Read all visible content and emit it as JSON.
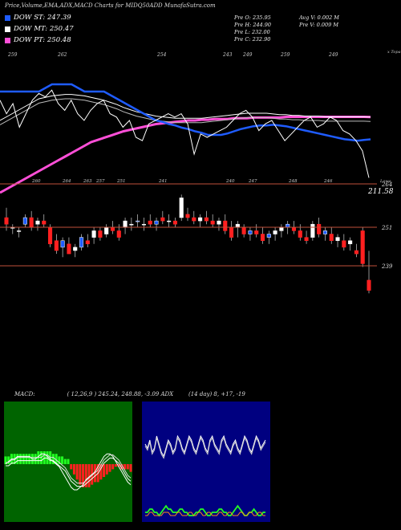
{
  "header": {
    "title": "Price,Volume,EMA,ADX,MACD Charts for MIDQ50ADD MunafaSutra.com"
  },
  "legend": [
    {
      "label": "DOW ST: 247.39",
      "color": "#1f5cff"
    },
    {
      "label": "DOW MT: 250.47",
      "color": "#ffffff"
    },
    {
      "label": "DOW PT: 250.48",
      "color": "#ff4fd8"
    }
  ],
  "ohlc": {
    "open": "Pre  O: 235.95",
    "high": "Pre  H: 244.90",
    "low": "Pre  L: 232.00",
    "close": "Pre  C: 232.90",
    "avg_vol": "Avg V: 0.002  M",
    "pre_vol": "Pre  V: 0.009 M"
  },
  "top_panel": {
    "date_labels": [
      "259",
      "262",
      "254",
      "243",
      "249",
      "259",
      "249"
    ],
    "right_label": "x Topa",
    "scale_label": "Lowa"
  },
  "candle_panel": {
    "top_labels": [
      "260",
      "264",
      "263",
      "257",
      "251",
      "241",
      "240",
      "247",
      "248",
      "246"
    ],
    "price_labels": [
      "264",
      "211.58",
      "251",
      "239"
    ]
  },
  "macd": {
    "label": "MACD:",
    "values": "( 12,26,9 ) 245.24,  248.88, -3.09 ADX"
  },
  "adx": {
    "label": "(14  day) 8,  +17,  -19"
  },
  "chart_data": {
    "type": "candlestick",
    "price_series": {
      "close": [
        256,
        252,
        255,
        248,
        252,
        256,
        258,
        257,
        259,
        255,
        253,
        256,
        252,
        250,
        253,
        255,
        256,
        252,
        251,
        248,
        250,
        245,
        244,
        249,
        250,
        251,
        252,
        251,
        252,
        249,
        240,
        246,
        245,
        246,
        247,
        248,
        250,
        252,
        253,
        251,
        247,
        249,
        250,
        247,
        244,
        246,
        248,
        250,
        251,
        248,
        249,
        251,
        250,
        247,
        246,
        244,
        241,
        233
      ]
    },
    "ema_lines": {
      "ST": [
        254,
        254,
        254,
        254,
        254,
        254,
        254,
        254.5,
        255,
        255,
        255,
        255,
        254.5,
        254,
        254,
        254,
        254,
        253.5,
        253,
        252.5,
        252,
        251.5,
        251,
        250.5,
        250,
        249.8,
        249.5,
        249.3,
        249,
        248.8,
        248.5,
        248.3,
        248,
        248,
        248,
        248.2,
        248.5,
        248.8,
        249,
        249.2,
        249.3,
        249.3,
        249.4,
        249.3,
        249.2,
        249,
        248.8,
        248.6,
        248.4,
        248.2,
        248,
        247.8,
        247.6,
        247.4,
        247.3,
        247.2,
        247.3,
        247.39
      ],
      "MT": [
        250,
        250.5,
        251,
        251.5,
        252,
        252.5,
        253,
        253.2,
        253.4,
        253.5,
        253.6,
        253.6,
        253.5,
        253.4,
        253.2,
        253,
        252.8,
        252.5,
        252.2,
        251.8,
        251.5,
        251.2,
        251,
        250.8,
        250.6,
        250.5,
        250.4,
        250.3,
        250.3,
        250.3,
        250.3,
        250.3,
        250.4,
        250.5,
        250.6,
        250.7,
        250.8,
        250.9,
        251,
        251,
        251,
        251,
        250.9,
        250.8,
        250.8,
        250.7,
        250.7,
        250.6,
        250.6,
        250.6,
        250.5,
        250.5,
        250.5,
        250.5,
        250.5,
        250.5,
        250.5,
        250.47
      ],
      "PT": [
        240,
        240.5,
        241,
        241.5,
        242,
        242.5,
        243,
        243.5,
        244,
        244.5,
        245,
        245.5,
        246,
        246.5,
        247,
        247.3,
        247.6,
        247.9,
        248.2,
        248.5,
        248.7,
        248.9,
        249.1,
        249.3,
        249.5,
        249.6,
        249.7,
        249.8,
        249.9,
        250,
        250,
        250.1,
        250.1,
        250.2,
        250.2,
        250.2,
        250.3,
        250.3,
        250.3,
        250.4,
        250.4,
        250.4,
        250.4,
        250.4,
        250.5,
        250.5,
        250.5,
        250.5,
        250.5,
        250.5,
        250.5,
        250.5,
        250.5,
        250.5,
        250.5,
        250.5,
        250.5,
        250.48
      ]
    },
    "candles": [
      {
        "o": 255,
        "h": 258,
        "l": 251,
        "c": 253
      },
      {
        "o": 252,
        "h": 253,
        "l": 250,
        "c": 252
      },
      {
        "o": 251,
        "h": 252,
        "l": 249,
        "c": 251
      },
      {
        "o": 253,
        "h": 256,
        "l": 252,
        "c": 255
      },
      {
        "o": 255,
        "h": 257,
        "l": 251,
        "c": 252
      },
      {
        "o": 253,
        "h": 255,
        "l": 251,
        "c": 254
      },
      {
        "o": 254,
        "h": 256,
        "l": 252,
        "c": 253
      },
      {
        "o": 252,
        "h": 253,
        "l": 246,
        "c": 247
      },
      {
        "o": 248,
        "h": 250,
        "l": 244,
        "c": 245
      },
      {
        "o": 246,
        "h": 249,
        "l": 243,
        "c": 248
      },
      {
        "o": 247,
        "h": 249,
        "l": 244,
        "c": 244
      },
      {
        "o": 245,
        "h": 247,
        "l": 243,
        "c": 246
      },
      {
        "o": 246,
        "h": 250,
        "l": 245,
        "c": 249
      },
      {
        "o": 248,
        "h": 250,
        "l": 246,
        "c": 247
      },
      {
        "o": 249,
        "h": 252,
        "l": 247,
        "c": 251
      },
      {
        "o": 251,
        "h": 252,
        "l": 248,
        "c": 249
      },
      {
        "o": 250,
        "h": 253,
        "l": 249,
        "c": 252
      },
      {
        "o": 252,
        "h": 254,
        "l": 250,
        "c": 251
      },
      {
        "o": 251,
        "h": 253,
        "l": 248,
        "c": 249
      },
      {
        "o": 252,
        "h": 255,
        "l": 250,
        "c": 254
      },
      {
        "o": 253,
        "h": 255,
        "l": 251,
        "c": 253
      },
      {
        "o": 254,
        "h": 256,
        "l": 252,
        "c": 254
      },
      {
        "o": 253,
        "h": 255,
        "l": 251,
        "c": 253
      },
      {
        "o": 254,
        "h": 256,
        "l": 252,
        "c": 253
      },
      {
        "o": 253,
        "h": 255,
        "l": 251,
        "c": 254
      },
      {
        "o": 255,
        "h": 257,
        "l": 253,
        "c": 254
      },
      {
        "o": 254,
        "h": 256,
        "l": 252,
        "c": 254
      },
      {
        "o": 254,
        "h": 255,
        "l": 252,
        "c": 253
      },
      {
        "o": 255,
        "h": 262,
        "l": 254,
        "c": 261
      },
      {
        "o": 256,
        "h": 258,
        "l": 254,
        "c": 255
      },
      {
        "o": 255,
        "h": 257,
        "l": 253,
        "c": 254
      },
      {
        "o": 254,
        "h": 256,
        "l": 252,
        "c": 255
      },
      {
        "o": 255,
        "h": 257,
        "l": 253,
        "c": 254
      },
      {
        "o": 254,
        "h": 256,
        "l": 252,
        "c": 253
      },
      {
        "o": 253,
        "h": 255,
        "l": 251,
        "c": 254
      },
      {
        "o": 254,
        "h": 256,
        "l": 250,
        "c": 251
      },
      {
        "o": 252,
        "h": 254,
        "l": 248,
        "c": 249
      },
      {
        "o": 252,
        "h": 254,
        "l": 249,
        "c": 253
      },
      {
        "o": 252,
        "h": 253,
        "l": 249,
        "c": 250
      },
      {
        "o": 250,
        "h": 252,
        "l": 248,
        "c": 251
      },
      {
        "o": 251,
        "h": 253,
        "l": 249,
        "c": 250
      },
      {
        "o": 250,
        "h": 252,
        "l": 247,
        "c": 248
      },
      {
        "o": 249,
        "h": 251,
        "l": 247,
        "c": 250
      },
      {
        "o": 250,
        "h": 252,
        "l": 248,
        "c": 251
      },
      {
        "o": 251,
        "h": 253,
        "l": 249,
        "c": 252
      },
      {
        "o": 252,
        "h": 254,
        "l": 250,
        "c": 253
      },
      {
        "o": 252,
        "h": 254,
        "l": 250,
        "c": 251
      },
      {
        "o": 251,
        "h": 253,
        "l": 248,
        "c": 249
      },
      {
        "o": 249,
        "h": 251,
        "l": 247,
        "c": 248
      },
      {
        "o": 249,
        "h": 254,
        "l": 248,
        "c": 253
      },
      {
        "o": 253,
        "h": 255,
        "l": 249,
        "c": 250
      },
      {
        "o": 250,
        "h": 252,
        "l": 248,
        "c": 251
      },
      {
        "o": 250,
        "h": 252,
        "l": 247,
        "c": 248
      },
      {
        "o": 248,
        "h": 250,
        "l": 246,
        "c": 249
      },
      {
        "o": 248,
        "h": 250,
        "l": 245,
        "c": 246
      },
      {
        "o": 247,
        "h": 249,
        "l": 245,
        "c": 248
      },
      {
        "o": 245,
        "h": 247,
        "l": 243,
        "c": 244
      },
      {
        "o": 251,
        "h": 252,
        "l": 240,
        "c": 241
      },
      {
        "o": 236,
        "h": 244.9,
        "l": 232,
        "c": 232.9
      }
    ],
    "price_range": [
      230,
      265
    ],
    "macd_hist": [
      3,
      3,
      4,
      4,
      4,
      4,
      4,
      4,
      4,
      4,
      4,
      5,
      5,
      5,
      5,
      5,
      4,
      4,
      3,
      3,
      2,
      2,
      -2,
      -4,
      -6,
      -8,
      -9,
      -9,
      -9,
      -8,
      -7,
      -7,
      -6,
      -5,
      -4,
      -3,
      -2,
      -1,
      -1,
      -2,
      -2,
      -2,
      -3
    ],
    "macd_line": [
      0,
      1,
      2,
      2,
      3,
      3,
      3,
      3,
      3,
      2,
      2,
      3,
      4,
      4,
      3,
      2,
      1,
      0,
      -1,
      -3,
      -5,
      -7,
      -9,
      -10,
      -10,
      -9,
      -8,
      -6,
      -5,
      -4,
      -3,
      -1,
      1,
      3,
      4,
      4,
      3,
      1,
      -1,
      -3,
      -5,
      -7,
      -8
    ],
    "signal_line": [
      0,
      0,
      1,
      1,
      2,
      2,
      2,
      2,
      2,
      2,
      2,
      2,
      2,
      3,
      3,
      2,
      2,
      1,
      0,
      -1,
      -2,
      -4,
      -6,
      -7,
      -8,
      -8,
      -8,
      -7,
      -6,
      -5,
      -4,
      -3,
      -1,
      1,
      2,
      3,
      3,
      2,
      1,
      -1,
      -3,
      -5,
      -6
    ],
    "adx_di": [
      7,
      6,
      8,
      5,
      6,
      9,
      7,
      5,
      4,
      6,
      8,
      7,
      5,
      6,
      9,
      8,
      6,
      5,
      7,
      9,
      8,
      6,
      5,
      7,
      9,
      8,
      6,
      5,
      8,
      9,
      7,
      6,
      5,
      8,
      9,
      7,
      6,
      5,
      7,
      8,
      6,
      5,
      7,
      9,
      8,
      6,
      5,
      7,
      9,
      8,
      6,
      7,
      8
    ],
    "adx_plus": [
      2,
      2,
      3,
      3,
      2,
      2,
      1,
      2,
      3,
      4,
      3,
      3,
      2,
      2,
      2,
      3,
      3,
      2,
      2,
      1,
      1,
      1,
      2,
      2,
      3,
      3,
      2,
      1,
      1,
      2,
      2,
      2,
      3,
      3,
      2,
      2,
      1,
      1,
      2,
      3,
      4,
      3,
      2,
      1,
      1,
      2,
      2,
      3,
      2,
      1,
      1,
      2,
      2
    ],
    "adx_minus": [
      1,
      1,
      2,
      2,
      1,
      1,
      1,
      1,
      2,
      2,
      2,
      1,
      1,
      1,
      2,
      2,
      1,
      1,
      1,
      2,
      2,
      1,
      1,
      2,
      2,
      1,
      1,
      2,
      2,
      1,
      1,
      1,
      2,
      2,
      1,
      1,
      2,
      2,
      1,
      1,
      1,
      2,
      2,
      1,
      1,
      2,
      2,
      1,
      1,
      2,
      2,
      1,
      1
    ]
  }
}
